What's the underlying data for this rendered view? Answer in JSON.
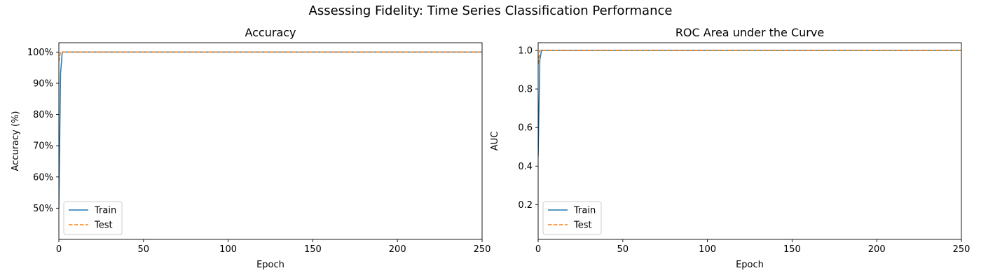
{
  "figure": {
    "title": "Assessing Fidelity: Time Series Classification Performance"
  },
  "chart_data": [
    {
      "type": "line",
      "title": "Accuracy",
      "xlabel": "Epoch",
      "ylabel": "Accuracy (%)",
      "xlim": [
        0,
        250
      ],
      "ylim": [
        0.4,
        1.03
      ],
      "xticks": [
        0,
        50,
        100,
        150,
        200,
        250
      ],
      "xtick_labels": [
        "0",
        "50",
        "100",
        "150",
        "200",
        "250"
      ],
      "yticks": [
        0.5,
        0.6,
        0.7,
        0.8,
        0.9,
        1.0
      ],
      "ytick_labels": [
        "50%",
        "60%",
        "70%",
        "80%",
        "90%",
        "100%"
      ],
      "grid": false,
      "legend": "lower left",
      "series": [
        {
          "name": "Train",
          "style": "solid",
          "color": "#1f77b4",
          "x": [
            0,
            1,
            2,
            250
          ],
          "y": [
            0.5,
            0.93,
            1.0,
            1.0
          ]
        },
        {
          "name": "Test",
          "style": "dashed",
          "color": "#ff7f0e",
          "x": [
            0,
            1,
            250
          ],
          "y": [
            0.97,
            1.0,
            1.0
          ]
        }
      ]
    },
    {
      "type": "line",
      "title": "ROC Area under the Curve",
      "xlabel": "Epoch",
      "ylabel": "AUC",
      "xlim": [
        0,
        250
      ],
      "ylim": [
        0.02,
        1.04
      ],
      "xticks": [
        0,
        50,
        100,
        150,
        200,
        250
      ],
      "xtick_labels": [
        "0",
        "50",
        "100",
        "150",
        "200",
        "250"
      ],
      "yticks": [
        0.2,
        0.4,
        0.6,
        0.8,
        1.0
      ],
      "ytick_labels": [
        "0.2",
        "0.4",
        "0.6",
        "0.8",
        "1.0"
      ],
      "grid": false,
      "legend": "lower left",
      "series": [
        {
          "name": "Train",
          "style": "solid",
          "color": "#1f77b4",
          "x": [
            0,
            1,
            2,
            250
          ],
          "y": [
            0.45,
            0.95,
            1.0,
            1.0
          ]
        },
        {
          "name": "Test",
          "style": "dashed",
          "color": "#ff7f0e",
          "x": [
            0,
            1,
            250
          ],
          "y": [
            0.93,
            1.0,
            1.0
          ]
        }
      ]
    }
  ]
}
